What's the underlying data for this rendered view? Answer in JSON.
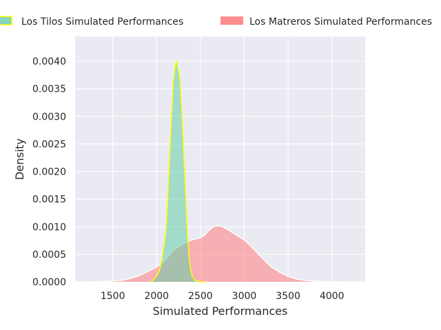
{
  "chart_data": {
    "type": "area",
    "xlabel": "Simulated Performances",
    "ylabel": "Density",
    "xlim": [
      1070,
      4380
    ],
    "ylim": [
      0,
      0.00445
    ],
    "xticks": [
      1500,
      2000,
      2500,
      3000,
      3500,
      4000
    ],
    "xtick_labels": [
      "1500",
      "2000",
      "2500",
      "3000",
      "3500",
      "4000"
    ],
    "yticks": [
      0.0,
      0.0005,
      0.001,
      0.0015,
      0.002,
      0.0025,
      0.003,
      0.0035,
      0.004
    ],
    "ytick_labels": [
      "0.0000",
      "0.0005",
      "0.0010",
      "0.0015",
      "0.0020",
      "0.0025",
      "0.0030",
      "0.0035",
      "0.0040"
    ],
    "grid": true,
    "legend_placement": "top",
    "series": [
      {
        "name": "Los Matreros Simulated Performances",
        "fill_color": "#ff7f7f",
        "line_color": "#ffffff",
        "x": [
          1170,
          1300,
          1450,
          1600,
          1700,
          1800,
          1900,
          2000,
          2100,
          2200,
          2300,
          2400,
          2450,
          2500,
          2550,
          2600,
          2650,
          2700,
          2750,
          2800,
          2850,
          2900,
          2950,
          3000,
          3050,
          3100,
          3200,
          3300,
          3400,
          3500,
          3600,
          3700,
          3800,
          3900,
          4000,
          4100,
          4200
        ],
        "y": [
          0.0,
          2e-06,
          1e-05,
          3e-05,
          6e-05,
          0.00011,
          0.00019,
          0.00027,
          0.0004,
          0.00059,
          0.00069,
          0.00076,
          0.00078,
          0.0008,
          0.00085,
          0.00094,
          0.001,
          0.00102,
          0.001,
          0.00096,
          0.00091,
          0.00086,
          0.00081,
          0.00076,
          0.00069,
          0.00061,
          0.00044,
          0.00028,
          0.00018,
          0.0001,
          5e-05,
          2.5e-05,
          1.2e-05,
          5e-06,
          2e-06,
          5e-07,
          0.0
        ]
      },
      {
        "name": "Los Tilos Simulated Performances",
        "fill_color": "#66cdaa",
        "line_color": "#ffff00",
        "x": [
          1930,
          1960,
          2000,
          2030,
          2060,
          2090,
          2110,
          2130,
          2150,
          2170,
          2190,
          2210,
          2225,
          2240,
          2255,
          2270,
          2290,
          2310,
          2330,
          2350,
          2370,
          2390,
          2410,
          2440,
          2470,
          2500,
          2530,
          2560
        ],
        "y": [
          0.0,
          3e-05,
          0.0001,
          0.0002,
          0.0004,
          0.0007,
          0.001,
          0.0016,
          0.0023,
          0.003,
          0.0036,
          0.0039,
          0.00401,
          0.0039,
          0.0038,
          0.0036,
          0.003,
          0.0023,
          0.0016,
          0.0009,
          0.00045,
          0.0002,
          9e-05,
          3e-05,
          1e-05,
          4e-06,
          1e-06,
          0.0
        ]
      }
    ]
  }
}
